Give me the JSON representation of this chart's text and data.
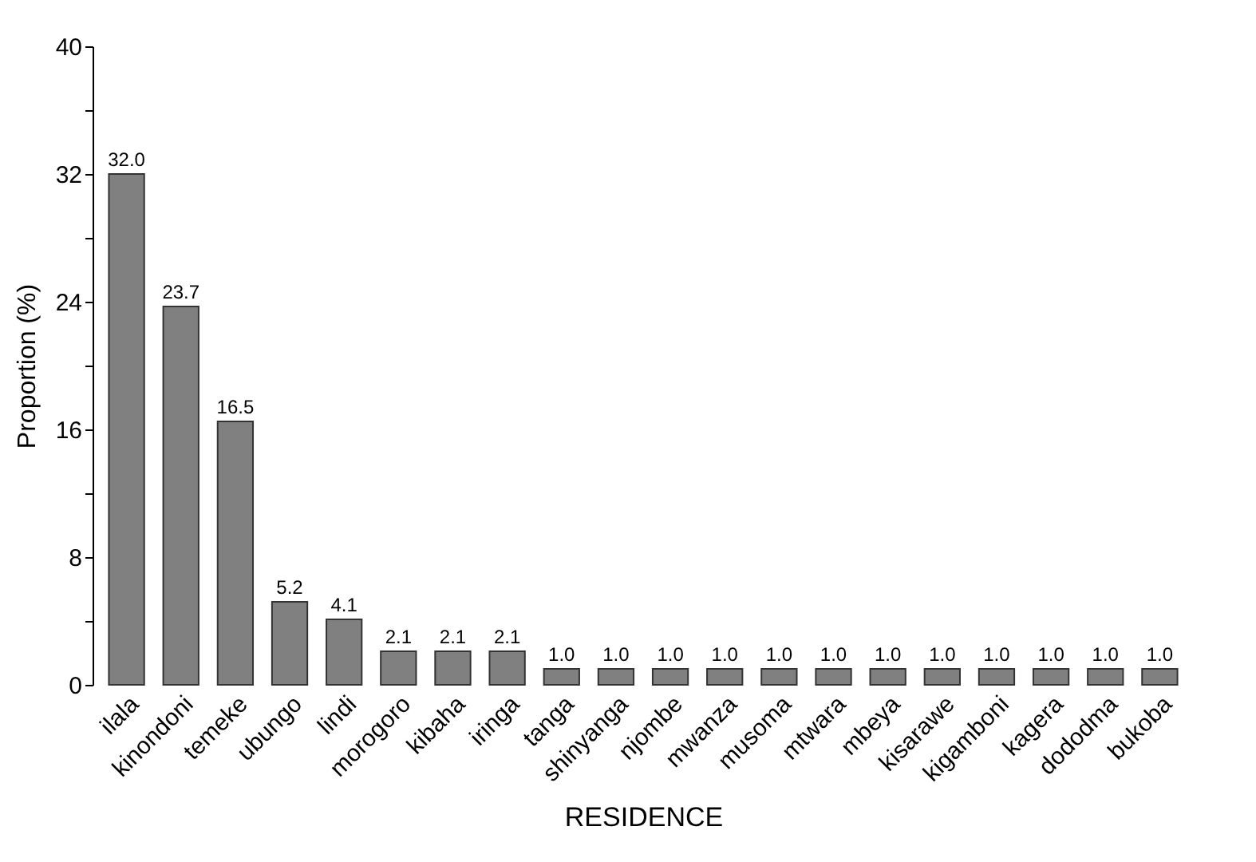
{
  "chart_data": {
    "type": "bar",
    "xlabel": "RESIDENCE",
    "ylabel": "Proportion (%)",
    "categories": [
      "ilala",
      "kinondoni",
      "temeke",
      "ubungo",
      "lindi",
      "morogoro",
      "kibaha",
      "iringa",
      "tanga",
      "shinyanga",
      "njombe",
      "mwanza",
      "musoma",
      "mtwara",
      "mbeya",
      "kisarawe",
      "kigamboni",
      "kagera",
      "dododma",
      "bukoba"
    ],
    "values": [
      32.0,
      23.7,
      16.5,
      5.2,
      4.1,
      2.1,
      2.1,
      2.1,
      1.0,
      1.0,
      1.0,
      1.0,
      1.0,
      1.0,
      1.0,
      1.0,
      1.0,
      1.0,
      1.0,
      1.0
    ],
    "color": "#808080",
    "ylim": [
      0,
      40
    ],
    "yticks": [
      0,
      {
        "value": 4,
        "label": null
      },
      8,
      {
        "value": 12,
        "label": null
      },
      16,
      {
        "value": 20,
        "label": null
      },
      24,
      {
        "value": 28,
        "label": null
      },
      32,
      {
        "value": 36,
        "label": null
      },
      40
    ],
    "value_labels": [
      "32.0",
      "23.7",
      "16.5",
      "5.2",
      "4.1",
      "2.1",
      "2.1",
      "2.1",
      "1.0",
      "1.0",
      "1.0",
      "1.0",
      "1.0",
      "1.0",
      "1.0",
      "1.0",
      "1.0",
      "1.0",
      "1.0",
      "1.0"
    ],
    "grid": false
  }
}
